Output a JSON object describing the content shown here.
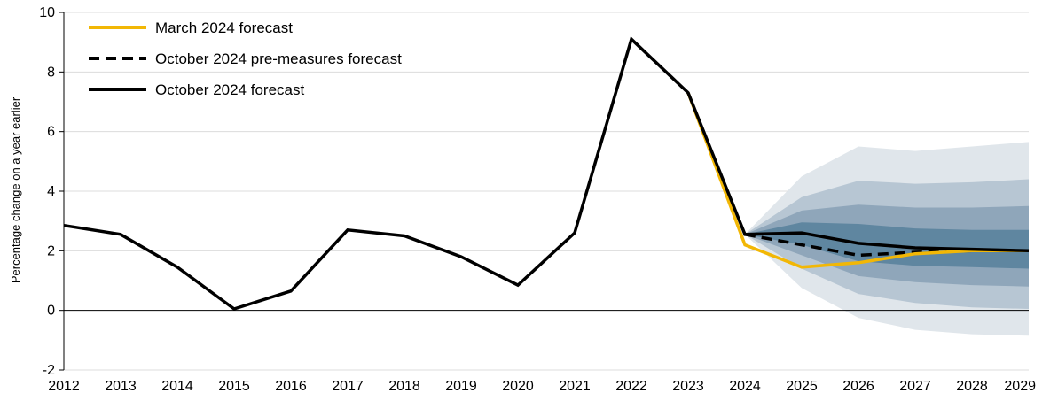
{
  "chart_data": {
    "type": "line",
    "title": "",
    "xlabel": "",
    "ylabel": "Percentage change on a year earlier",
    "xlim": [
      2012,
      2029
    ],
    "ylim": [
      -2,
      10
    ],
    "y_ticks": [
      -2,
      0,
      2,
      4,
      6,
      8,
      10
    ],
    "x_ticks": [
      2012,
      2013,
      2014,
      2015,
      2016,
      2017,
      2018,
      2019,
      2020,
      2021,
      2022,
      2023,
      2024,
      2025,
      2026,
      2027,
      2028,
      2029
    ],
    "grid": "horizontal",
    "legend_position": "top-left",
    "series": [
      {
        "name": "March 2024 forecast",
        "color": "#f2b705",
        "style": "solid",
        "x": [
          2023,
          2024,
          2025,
          2026,
          2027,
          2028,
          2029
        ],
        "values": [
          7.3,
          2.2,
          1.45,
          1.6,
          1.9,
          2.0,
          2.0
        ]
      },
      {
        "name": "October 2024 pre-measures forecast",
        "color": "#000000",
        "style": "dashed",
        "x": [
          2024,
          2025,
          2026,
          2027,
          2028,
          2029
        ],
        "values": [
          2.55,
          2.2,
          1.85,
          1.95,
          2.0,
          2.0
        ]
      },
      {
        "name": "October 2024 forecast",
        "color": "#000000",
        "style": "solid",
        "x": [
          2012,
          2013,
          2014,
          2015,
          2016,
          2017,
          2018,
          2019,
          2020,
          2021,
          2022,
          2023,
          2024,
          2025,
          2026,
          2027,
          2028,
          2029
        ],
        "values": [
          2.85,
          2.55,
          1.45,
          0.05,
          0.65,
          2.7,
          2.5,
          1.8,
          0.85,
          2.6,
          9.1,
          7.3,
          2.55,
          2.6,
          2.25,
          2.1,
          2.05,
          2.0
        ]
      }
    ],
    "fan": {
      "x": [
        2024,
        2025,
        2026,
        2027,
        2028,
        2029
      ],
      "colors": [
        "#e0e6eb",
        "#b7c6d3",
        "#8fa6ba",
        "#5f86a0"
      ],
      "bands": [
        {
          "upper": [
            2.55,
            4.5,
            5.5,
            5.35,
            5.5,
            5.65
          ],
          "lower": [
            2.55,
            0.75,
            -0.25,
            -0.65,
            -0.8,
            -0.85
          ]
        },
        {
          "upper": [
            2.55,
            3.8,
            4.35,
            4.25,
            4.3,
            4.4
          ],
          "lower": [
            2.55,
            1.4,
            0.55,
            0.25,
            0.1,
            0.05
          ]
        },
        {
          "upper": [
            2.55,
            3.35,
            3.55,
            3.45,
            3.45,
            3.5
          ],
          "lower": [
            2.55,
            1.85,
            1.15,
            0.95,
            0.85,
            0.8
          ]
        },
        {
          "upper": [
            2.55,
            2.95,
            2.9,
            2.75,
            2.7,
            2.7
          ],
          "lower": [
            2.55,
            2.2,
            1.65,
            1.5,
            1.45,
            1.4
          ]
        }
      ]
    }
  }
}
